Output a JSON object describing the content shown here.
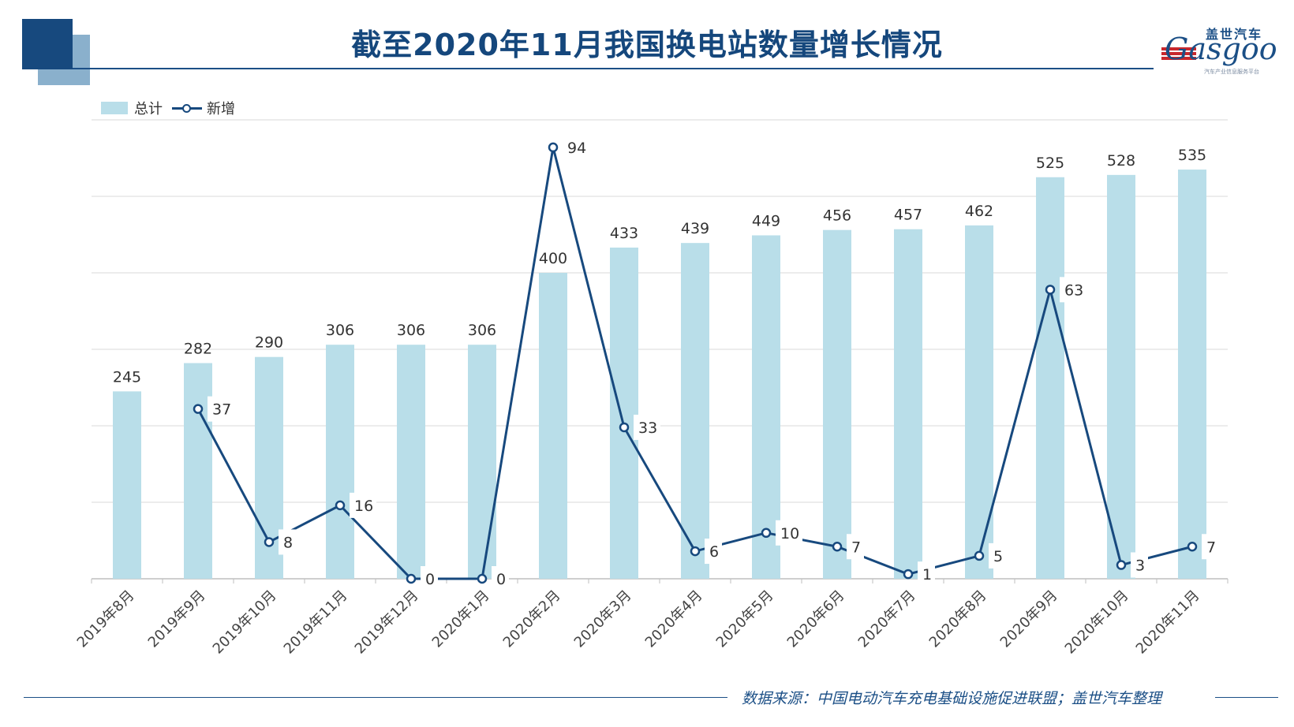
{
  "title": "截至2020年11月我国换电站数量增长情况",
  "logo": {
    "cn": "盖世汽车",
    "en": "Gasgoo",
    "sub": "汽车产业信息服务平台"
  },
  "source": "数据来源：中国电动汽车充电基础设施促进联盟；盖世汽车整理",
  "colors": {
    "bar": "#b9dee9",
    "line": "#17497e",
    "title": "#15477c",
    "grid": "#d9d9d9"
  },
  "chart_data": {
    "type": "bar",
    "categories": [
      "2019年8月",
      "2019年9月",
      "2019年10月",
      "2019年11月",
      "2019年12月",
      "2020年1月",
      "2020年2月",
      "2020年3月",
      "2020年4月",
      "2020年5月",
      "2020年6月",
      "2020年7月",
      "2020年8月",
      "2020年9月",
      "2020年10月",
      "2020年11月"
    ],
    "series": [
      {
        "name": "总计",
        "type": "bar",
        "values": [
          245,
          282,
          290,
          306,
          306,
          306,
          400,
          433,
          439,
          449,
          456,
          457,
          462,
          525,
          528,
          535
        ],
        "axis": "left"
      },
      {
        "name": "新增",
        "type": "line",
        "values": [
          null,
          37,
          8,
          16,
          0,
          0,
          94,
          33,
          6,
          10,
          7,
          1,
          5,
          63,
          3,
          7
        ],
        "axis": "right"
      }
    ],
    "ylim_left": [
      0,
      600
    ],
    "ylim_right": [
      0,
      100
    ],
    "grid": true,
    "legend": "top-left"
  }
}
